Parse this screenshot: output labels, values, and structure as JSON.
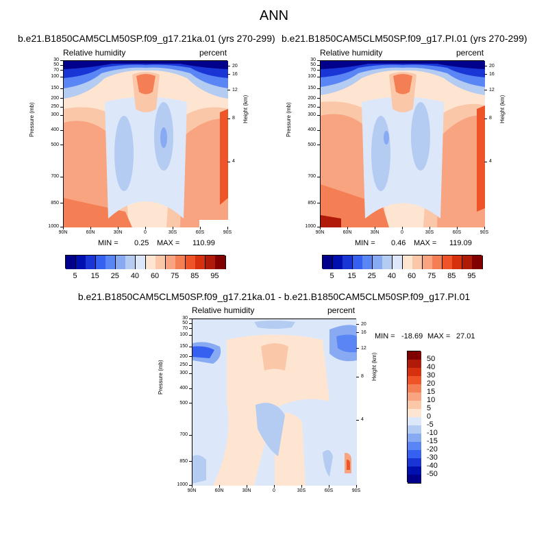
{
  "title": "ANN",
  "chart_data": [
    {
      "type": "heatmap",
      "title": "b.e21.B1850CAM5CLM50SP.f09_g17.21ka.01 (yrs 270-299)",
      "left_label": "Relative humidity",
      "right_label": "percent",
      "xlabel": "",
      "ylabel": "Pressure (mb)",
      "y2label": "Height (km)",
      "x_ticks": [
        "90N",
        "60N",
        "30N",
        "0",
        "30S",
        "60S",
        "90S"
      ],
      "y_ticks": [
        "30",
        "50",
        "70",
        "100",
        "150",
        "200",
        "250",
        "300",
        "400",
        "500",
        "700",
        "850",
        "1000"
      ],
      "y2_ticks": [
        "20",
        "16",
        "12",
        "8",
        "4"
      ],
      "min_label": "MIN =",
      "min_value": "0.25",
      "max_label": "MAX =",
      "max_value": "110.99",
      "colorbar_labels": [
        "5",
        "15",
        "25",
        "40",
        "60",
        "75",
        "85",
        "95"
      ]
    },
    {
      "type": "heatmap",
      "title": "b.e21.B1850CAM5CLM50SP.f09_g17.PI.01 (yrs 270-299)",
      "left_label": "Relative humidity",
      "right_label": "percent",
      "xlabel": "",
      "ylabel": "Pressure (mb)",
      "y2label": "Height (km)",
      "x_ticks": [
        "90N",
        "60N",
        "30N",
        "0",
        "30S",
        "60S",
        "90S"
      ],
      "y_ticks": [
        "30",
        "50",
        "70",
        "100",
        "150",
        "200",
        "250",
        "300",
        "400",
        "500",
        "700",
        "850",
        "1000"
      ],
      "y2_ticks": [
        "20",
        "16",
        "12",
        "8",
        "4"
      ],
      "min_label": "MIN =",
      "min_value": "0.46",
      "max_label": "MAX =",
      "max_value": "119.09",
      "colorbar_labels": [
        "5",
        "15",
        "25",
        "40",
        "60",
        "75",
        "85",
        "95"
      ]
    },
    {
      "type": "heatmap",
      "title": "b.e21.B1850CAM5CLM50SP.f09_g17.21ka.01 - b.e21.B1850CAM5CLM50SP.f09_g17.PI.01",
      "left_label": "Relative humidity",
      "right_label": "percent",
      "xlabel": "",
      "ylabel": "Pressure (mb)",
      "y2label": "Height (km)",
      "x_ticks": [
        "90N",
        "60N",
        "30N",
        "0",
        "30S",
        "60S",
        "90S"
      ],
      "y_ticks": [
        "30",
        "50",
        "70",
        "100",
        "150",
        "200",
        "250",
        "300",
        "400",
        "500",
        "700",
        "850",
        "1000"
      ],
      "y2_ticks": [
        "20",
        "16",
        "12",
        "8",
        "4"
      ],
      "min_label": "MIN =",
      "min_value": "-18.69",
      "max_label": "MAX =",
      "max_value": "27.01",
      "colorbar_labels": [
        "50",
        "40",
        "30",
        "20",
        "15",
        "10",
        "5",
        "0",
        "-5",
        "-10",
        "-15",
        "-20",
        "-30",
        "-40",
        "-50"
      ]
    }
  ],
  "colors": {
    "rh_scale": [
      "#00008a",
      "#0010b0",
      "#1a35d6",
      "#3560f0",
      "#5a86f5",
      "#88aaf2",
      "#b4cbf2",
      "#dce8fa",
      "#fde5d2",
      "#fbc7a9",
      "#f8a480",
      "#f57f55",
      "#ee5428",
      "#d6300f",
      "#b01a08",
      "#800000"
    ],
    "diff_scale": [
      "#800000",
      "#b01a08",
      "#d6300f",
      "#ee5428",
      "#f57f55",
      "#f8a480",
      "#fbc7a9",
      "#fde5d2",
      "#dce8fa",
      "#b4cbf2",
      "#88aaf2",
      "#5a86f5",
      "#3560f0",
      "#1a35d6",
      "#0010b0",
      "#00008a"
    ]
  }
}
